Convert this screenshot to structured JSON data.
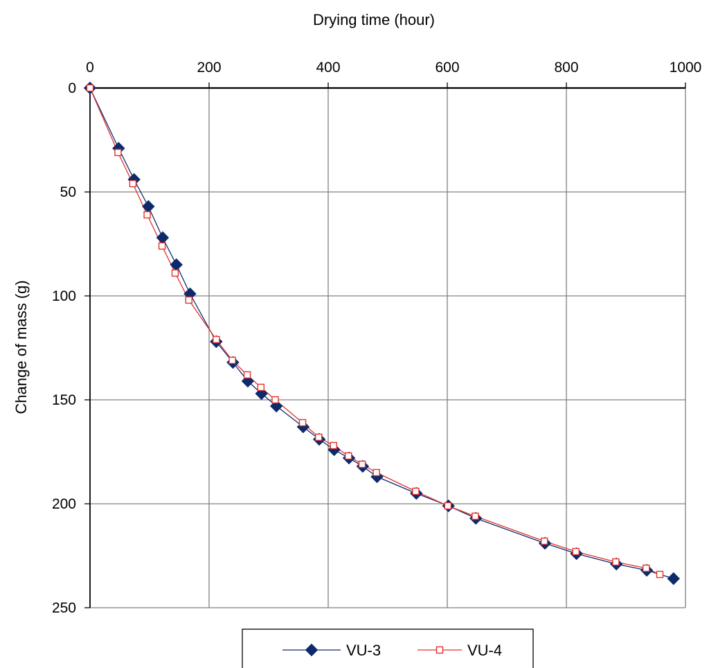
{
  "chart_data": {
    "type": "line",
    "title": "",
    "xlabel": "Drying time (hour)",
    "ylabel": "Change of mass (g)",
    "xlim": [
      0,
      1000
    ],
    "ylim": [
      0,
      250
    ],
    "y_inverted": true,
    "x_axis_position": "top",
    "x_ticks": [
      "0",
      "200",
      "400",
      "600",
      "800",
      "1000"
    ],
    "y_ticks": [
      "0",
      "50",
      "100",
      "150",
      "200",
      "250"
    ],
    "x_tick_values": [
      0,
      200,
      400,
      600,
      800,
      1000
    ],
    "y_tick_values": [
      0,
      50,
      100,
      150,
      200,
      250
    ],
    "grid": true,
    "legend_position": "bottom",
    "series": [
      {
        "name": "VU-3",
        "color": "#0d2a6b",
        "marker": "diamond",
        "points": [
          [
            0,
            0
          ],
          [
            48,
            29
          ],
          [
            74,
            44
          ],
          [
            98,
            57
          ],
          [
            122,
            72
          ],
          [
            145,
            85
          ],
          [
            168,
            99
          ],
          [
            212,
            122
          ],
          [
            240,
            132
          ],
          [
            265,
            141
          ],
          [
            288,
            147
          ],
          [
            313,
            153
          ],
          [
            358,
            163
          ],
          [
            385,
            169
          ],
          [
            410,
            174
          ],
          [
            435,
            178
          ],
          [
            458,
            182
          ],
          [
            482,
            187
          ],
          [
            548,
            195
          ],
          [
            602,
            201
          ],
          [
            648,
            207
          ],
          [
            764,
            219
          ],
          [
            817,
            224
          ],
          [
            884,
            229
          ],
          [
            935,
            232
          ],
          [
            980,
            236
          ]
        ]
      },
      {
        "name": "VU-4",
        "color": "#e3302a",
        "marker": "square",
        "points": [
          [
            0,
            0
          ],
          [
            47,
            31
          ],
          [
            72,
            46
          ],
          [
            96,
            61
          ],
          [
            121,
            76
          ],
          [
            143,
            89
          ],
          [
            166,
            102
          ],
          [
            212,
            121
          ],
          [
            239,
            131
          ],
          [
            264,
            138
          ],
          [
            287,
            144
          ],
          [
            311,
            150
          ],
          [
            357,
            161
          ],
          [
            384,
            168
          ],
          [
            409,
            172
          ],
          [
            434,
            177
          ],
          [
            457,
            181
          ],
          [
            481,
            185
          ],
          [
            547,
            194
          ],
          [
            601,
            201
          ],
          [
            647,
            206
          ],
          [
            763,
            218
          ],
          [
            816,
            223
          ],
          [
            883,
            228
          ],
          [
            934,
            231
          ],
          [
            957,
            234
          ]
        ]
      }
    ]
  }
}
